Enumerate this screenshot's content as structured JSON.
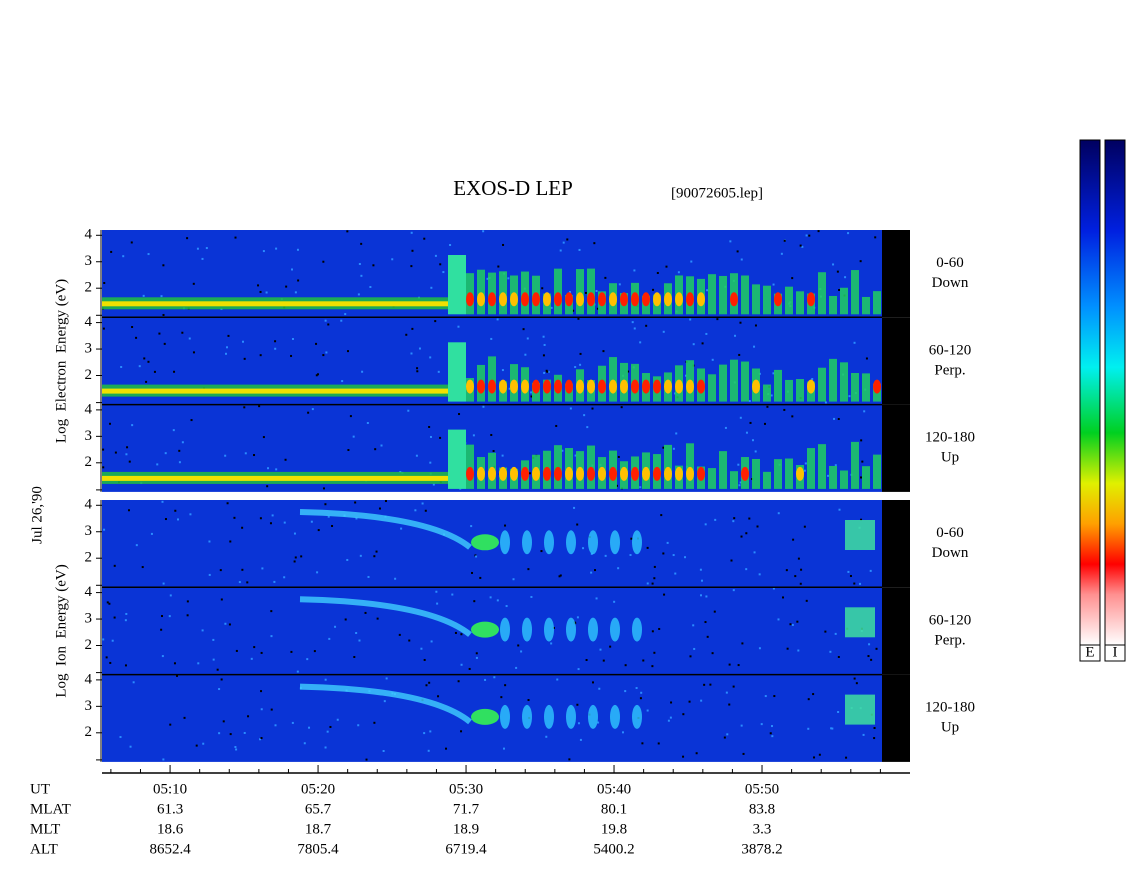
{
  "chart_data": {
    "type": "spectrogram",
    "title": "EXOS-D LEP",
    "subtitle": "[90072605.lep]",
    "date_label": "Jul 26,'90",
    "xlim": [
      305.4,
      360
    ],
    "xticks": [
      {
        "value": 310,
        "label": "05:10"
      },
      {
        "value": 320,
        "label": "05:20"
      },
      {
        "value": 330,
        "label": "05:30"
      },
      {
        "value": 340,
        "label": "05:40"
      },
      {
        "value": 350,
        "label": "05:50"
      }
    ],
    "xminor": [
      306,
      308,
      312,
      314,
      316,
      318,
      322,
      324,
      326,
      328,
      332,
      334,
      336,
      338,
      342,
      344,
      346,
      348,
      352,
      354,
      356,
      358
    ],
    "ylim": [
      0.9,
      4.2
    ],
    "yticks": [
      2,
      3,
      4
    ],
    "groups": [
      {
        "axis_label": "Log  Electron  Energy (eV)",
        "panels": [
          {
            "lines": [
              "0-60",
              "Down"
            ]
          },
          {
            "lines": [
              "60-120",
              "Perp."
            ]
          },
          {
            "lines": [
              "120-180",
              "Up"
            ]
          }
        ]
      },
      {
        "axis_label": "Log  Ion  Energy (eV)",
        "panels": [
          {
            "lines": [
              "0-60",
              "Down"
            ]
          },
          {
            "lines": [
              "60-120",
              "Perp."
            ]
          },
          {
            "lines": [
              "120-180",
              "Up"
            ]
          }
        ]
      }
    ],
    "ephemeris": [
      {
        "label": "UT"
      },
      {
        "label": "MLAT",
        "values": [
          61.3,
          65.7,
          71.7,
          80.1,
          83.8
        ]
      },
      {
        "label": "MLT",
        "values": [
          18.6,
          18.7,
          18.9,
          19.8,
          3.3
        ]
      },
      {
        "label": "ALT",
        "values": [
          8652.4,
          7805.4,
          6719.4,
          5400.2,
          3878.2
        ]
      }
    ],
    "colorbar_labels": [
      "E",
      "I"
    ]
  }
}
